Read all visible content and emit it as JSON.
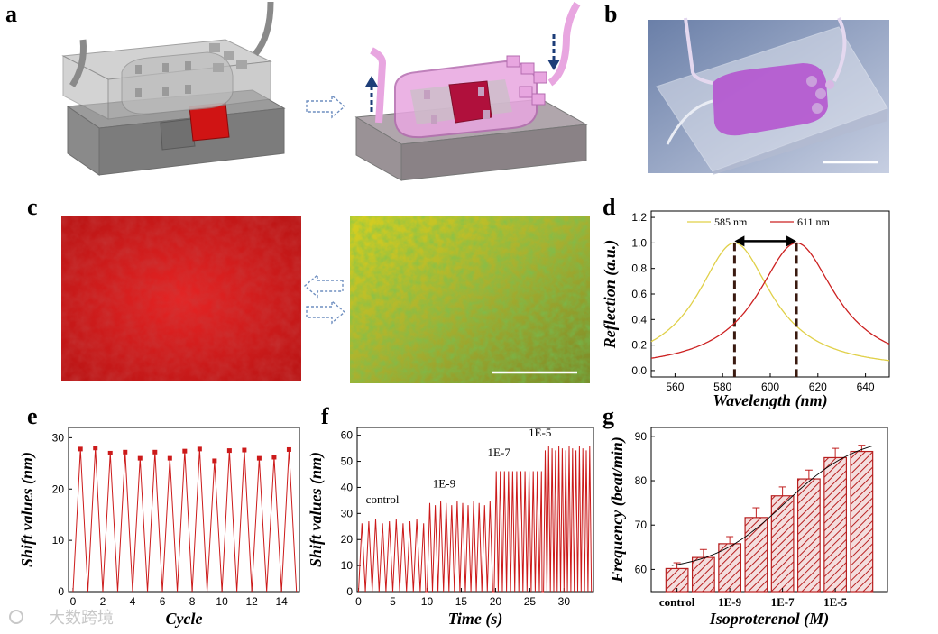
{
  "panels": {
    "a": "a",
    "b": "b",
    "c": "c",
    "d": "d",
    "e": "e",
    "f": "f",
    "g": "g"
  },
  "watermark": "大数跨境",
  "colors": {
    "red": "#cc1010",
    "yellow": "#e8d050",
    "magenta": "#c85cc8",
    "arrow_blue": "#1d3d78"
  },
  "chart_data": [
    {
      "id": "d",
      "type": "line",
      "xlabel": "Wavelength (nm)",
      "ylabel": "Reflection (a.u.)",
      "xlim": [
        550,
        650
      ],
      "ylim": [
        -0.05,
        1.25
      ],
      "xticks": [
        560,
        580,
        600,
        620,
        640
      ],
      "yticks": [
        0.0,
        0.2,
        0.4,
        0.6,
        0.8,
        1.0,
        1.2
      ],
      "series": [
        {
          "name": "585 nm",
          "peak": 585,
          "hwhm": 19,
          "color": "#e0d048"
        },
        {
          "name": "611 nm",
          "peak": 611,
          "hwhm": 20,
          "color": "#cc2020"
        }
      ]
    },
    {
      "id": "e",
      "type": "line",
      "xlabel": "Cycle",
      "ylabel": "Shift values (nm)",
      "xlim": [
        -0.3,
        15.2
      ],
      "ylim": [
        0,
        32
      ],
      "xticks": [
        0,
        2,
        4,
        6,
        8,
        10,
        12,
        14
      ],
      "yticks": [
        0,
        10,
        20,
        30
      ],
      "peaks_x": [
        0.5,
        1.5,
        2.5,
        3.5,
        4.5,
        5.5,
        6.5,
        7.5,
        8.5,
        9.5,
        10.5,
        11.5,
        12.5,
        13.5,
        14.5
      ],
      "peaks_y": [
        27.8,
        28.0,
        27.0,
        27.2,
        26.0,
        27.2,
        26.0,
        27.4,
        27.8,
        25.5,
        27.5,
        27.6,
        26.0,
        26.2,
        27.7
      ]
    },
    {
      "id": "f",
      "type": "line",
      "xlabel": "Time (s)",
      "ylabel": "Shift values (nm)",
      "xlim": [
        -0.2,
        34.3
      ],
      "ylim": [
        0,
        63
      ],
      "xticks": [
        0,
        5,
        10,
        15,
        20,
        25,
        30
      ],
      "yticks": [
        0,
        10,
        20,
        30,
        40,
        50,
        60
      ],
      "segments": [
        {
          "label": "control",
          "start": 0,
          "end": 9.8,
          "amplitude": 27,
          "period": 1.0
        },
        {
          "label": "1E-9",
          "start": 10,
          "end": 19.6,
          "amplitude": 34,
          "period": 0.8
        },
        {
          "label": "1E-7",
          "start": 19.8,
          "end": 26.8,
          "amplitude": 47,
          "period": 0.6
        },
        {
          "label": "1E-5",
          "start": 27,
          "end": 34,
          "amplitude": 55,
          "period": 0.5
        }
      ],
      "annotations": [
        "control",
        "1E-9",
        "1E-7",
        "1E-5"
      ]
    },
    {
      "id": "g",
      "type": "bar",
      "xlabel": "Isoproterenol (M)",
      "ylabel": "Frequency (beat/min)",
      "ylim": [
        55,
        92
      ],
      "yticks": [
        60,
        70,
        80,
        90
      ],
      "categories": [
        "control",
        "",
        "1E-9",
        "",
        "1E-7",
        "",
        "1E-5",
        ""
      ],
      "tick_labels": [
        "control",
        "1E-9",
        "1E-7",
        "1E-5"
      ],
      "values": [
        60.2,
        62.7,
        65.8,
        71.7,
        76.6,
        80.4,
        85.2,
        86.6
      ],
      "errors": [
        1.3,
        1.8,
        1.6,
        2.2,
        2.0,
        2.0,
        2.1,
        1.4
      ]
    }
  ]
}
